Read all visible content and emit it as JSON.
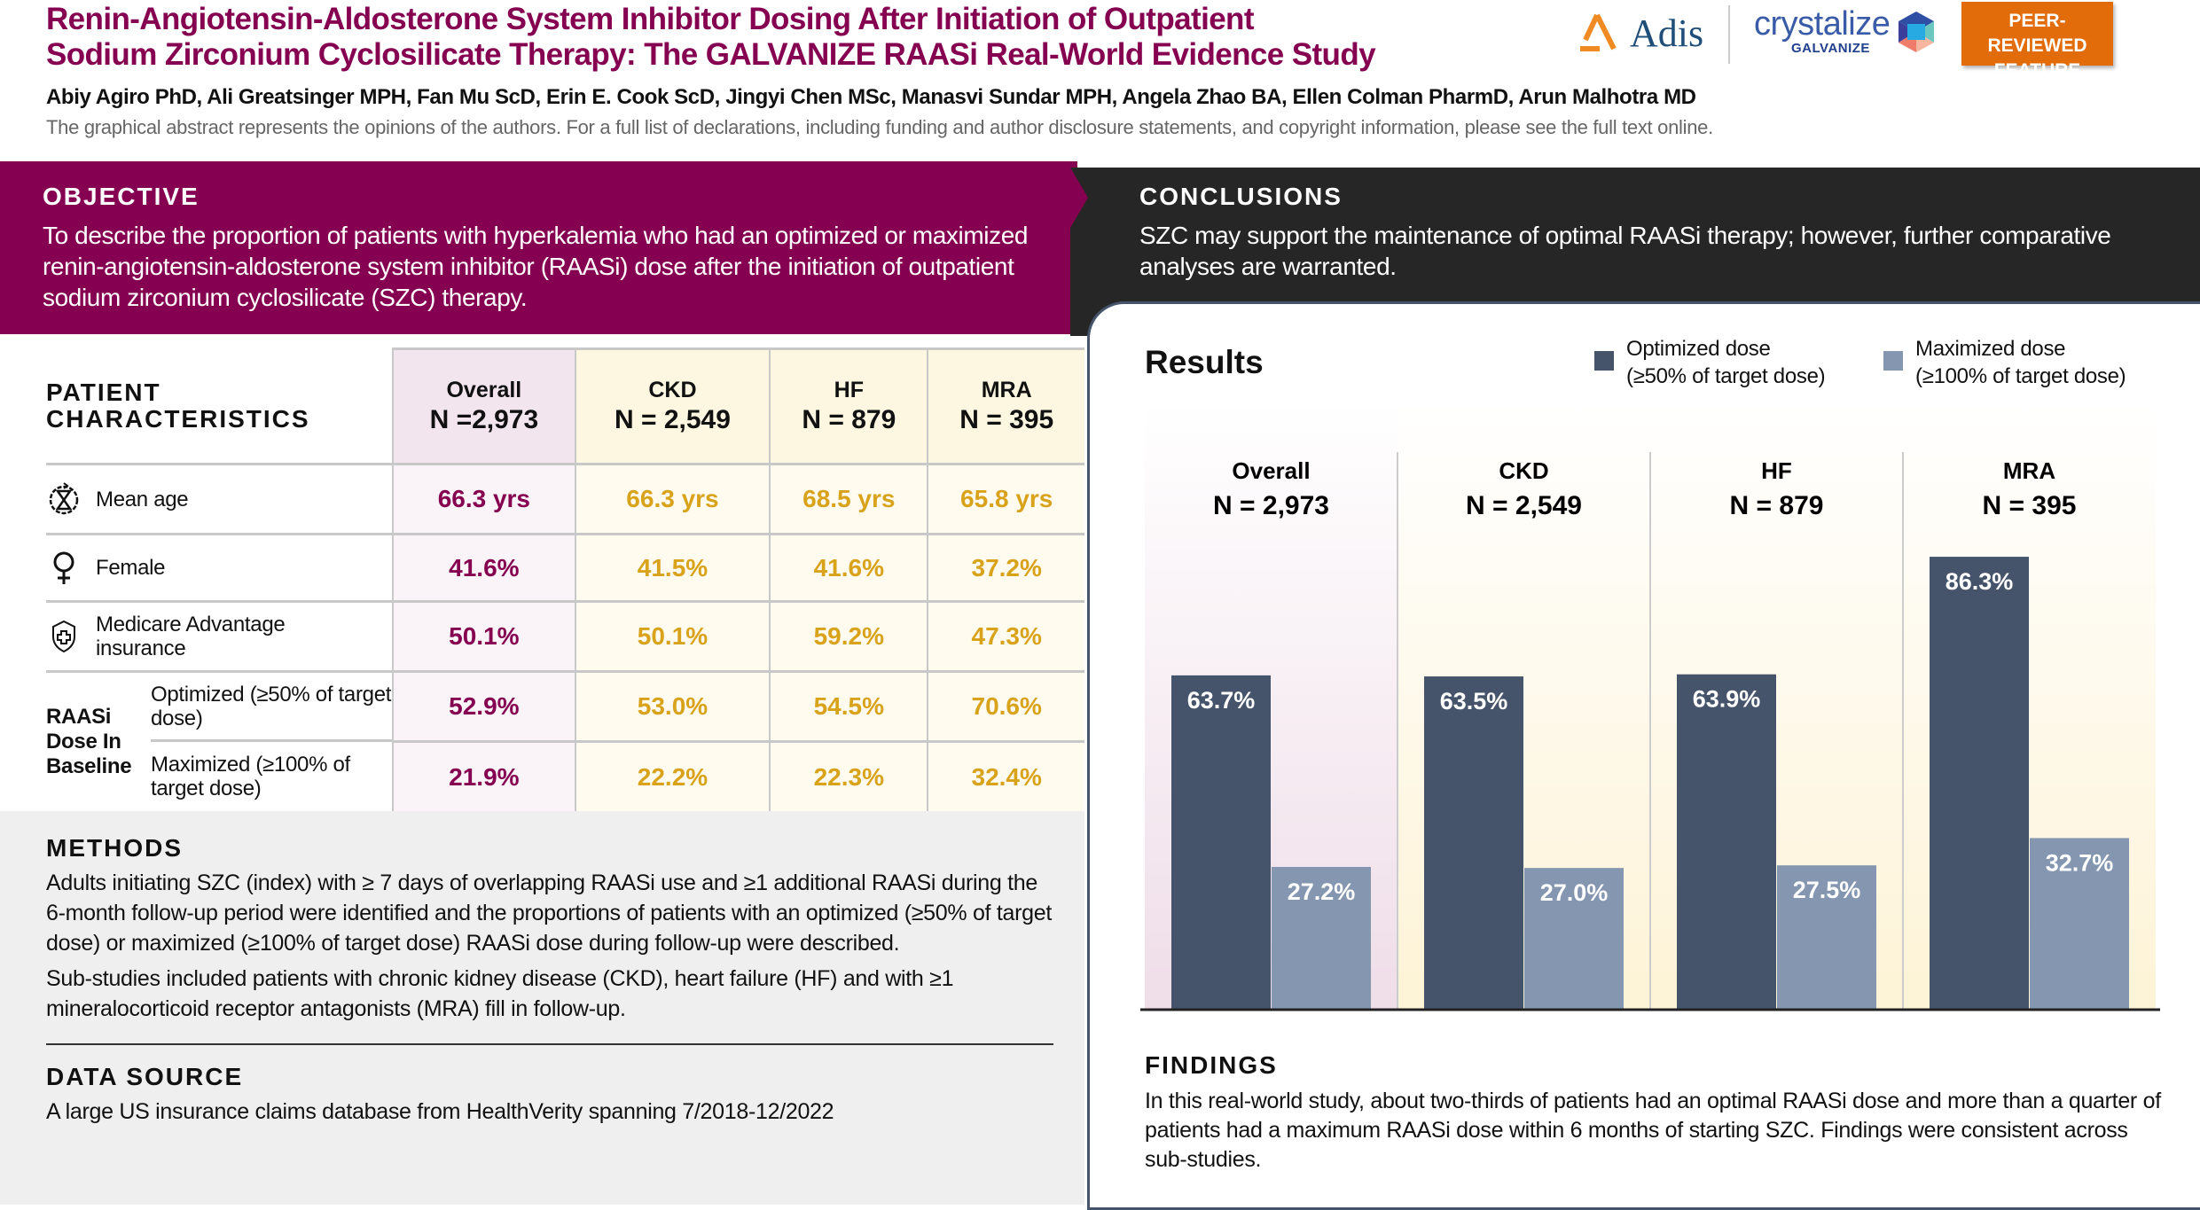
{
  "header": {
    "title_lines": [
      "Renin-Angiotensin-Aldosterone System Inhibitor Dosing After Initiation of Outpatient",
      "Sodium Zirconium Cyclosilicate Therapy: The GALVANIZE RAASi Real-World Evidence Study"
    ],
    "authors": "Abiy Agiro PhD, Ali Greatsinger MPH, Fan Mu ScD, Erin E. Cook ScD, Jingyi Chen MSc, Manasvi Sundar MPH, Angela Zhao BA, Ellen Colman PharmD, Arun Malhotra MD",
    "disclaimer": "The graphical abstract represents the opinions of the authors. For a full list of declarations, including funding and author disclosure statements, and copyright information, please see the full text online.",
    "logos": {
      "adis": "Adis",
      "crystalize": "crystalize",
      "galvanize": "GALVANIZE"
    },
    "badge": "PEER-REVIEWED FEATURE"
  },
  "objective": {
    "heading": "OBJECTIVE",
    "text": "To describe the proportion of patients with hyperkalemia who had an optimized or maximized renin-angiotensin-aldosterone system inhibitor (RAASi) dose after the initiation of outpatient sodium zirconium cyclosilicate (SZC) therapy."
  },
  "conclusions": {
    "heading": "CONCLUSIONS",
    "text": "SZC may support the maintenance of optimal RAASi therapy; however, further comparative analyses are warranted."
  },
  "table": {
    "heading": "PATIENT CHARACTERISTICS",
    "columns": [
      {
        "name": "Overall",
        "n": "N =2,973"
      },
      {
        "name": "CKD",
        "n": "N = 2,549"
      },
      {
        "name": "HF",
        "n": "N = 879"
      },
      {
        "name": "MRA",
        "n": "N = 395"
      }
    ],
    "rows": [
      {
        "label": "Mean age",
        "icon": "hourglass-icon",
        "values": [
          "66.3 yrs",
          "66.3 yrs",
          "68.5 yrs",
          "65.8 yrs"
        ]
      },
      {
        "label": "Female",
        "icon": "female-icon",
        "values": [
          "41.6%",
          "41.5%",
          "41.6%",
          "37.2%"
        ]
      },
      {
        "label": "Medicare Advantage insurance",
        "icon": "shield-cross-icon",
        "values": [
          "50.1%",
          "50.1%",
          "59.2%",
          "47.3%"
        ]
      },
      {
        "label": "Optimized (≥50% of target dose)",
        "values": [
          "52.9%",
          "53.0%",
          "54.5%",
          "70.6%"
        ]
      },
      {
        "label": "Maximized (≥100% of target dose)",
        "values": [
          "21.9%",
          "22.2%",
          "22.3%",
          "32.4%"
        ]
      }
    ],
    "group_label": "RAASi Dose In Baseline"
  },
  "methods": {
    "heading": "METHODS",
    "paragraphs": [
      "Adults initiating SZC (index) with ≥ 7 days of overlapping RAASi use and ≥1 additional RAASi during the 6-month follow-up period were identified and the proportions of patients with an optimized (≥50% of target dose) or maximized (≥100% of target dose) RAASi dose during follow-up were described.",
      "Sub-studies included patients with chronic kidney disease (CKD), heart failure (HF) and with ≥1 mineralocorticoid receptor antagonists (MRA) fill in follow-up."
    ]
  },
  "data_source": {
    "heading": "DATA SOURCE",
    "text": "A large US insurance claims database from HealthVerity spanning 7/2018-12/2022"
  },
  "findings": {
    "heading": "FINDINGS",
    "text": "In this real-world study, about two-thirds of patients had an optimal RAASi dose and more than a quarter of patients had a maximum RAASi dose within 6 months of starting SZC. Findings were consistent across sub-studies."
  },
  "chart_data": {
    "type": "bar",
    "title": "Results",
    "categories": [
      "Overall",
      "CKD",
      "HF",
      "MRA"
    ],
    "category_n": [
      "N = 2,973",
      "N = 2,549",
      "N = 879",
      "N = 395"
    ],
    "series": [
      {
        "name": "Optimized dose (≥50% of target dose)",
        "legend_lines": [
          "Optimized dose",
          "(≥50% of target dose)"
        ],
        "color": "#46546b",
        "values": [
          63.7,
          63.5,
          63.9,
          86.3
        ],
        "labels": [
          "63.7%",
          "63.5%",
          "63.9%",
          "86.3%"
        ]
      },
      {
        "name": "Maximized dose (≥100% of target dose)",
        "legend_lines": [
          "Maximized dose",
          "(≥100% of target dose)"
        ],
        "color": "#8496b0",
        "values": [
          27.2,
          27.0,
          27.5,
          32.7
        ],
        "labels": [
          "27.2%",
          "27.0%",
          "27.5%",
          "32.7%"
        ]
      }
    ],
    "ylim": [
      0,
      100
    ],
    "grid": false,
    "legend": "top-right"
  },
  "colors": {
    "brand": "#850050",
    "accent": "#d9a21b",
    "dark": "#262626",
    "badge": "#e36c0a"
  }
}
